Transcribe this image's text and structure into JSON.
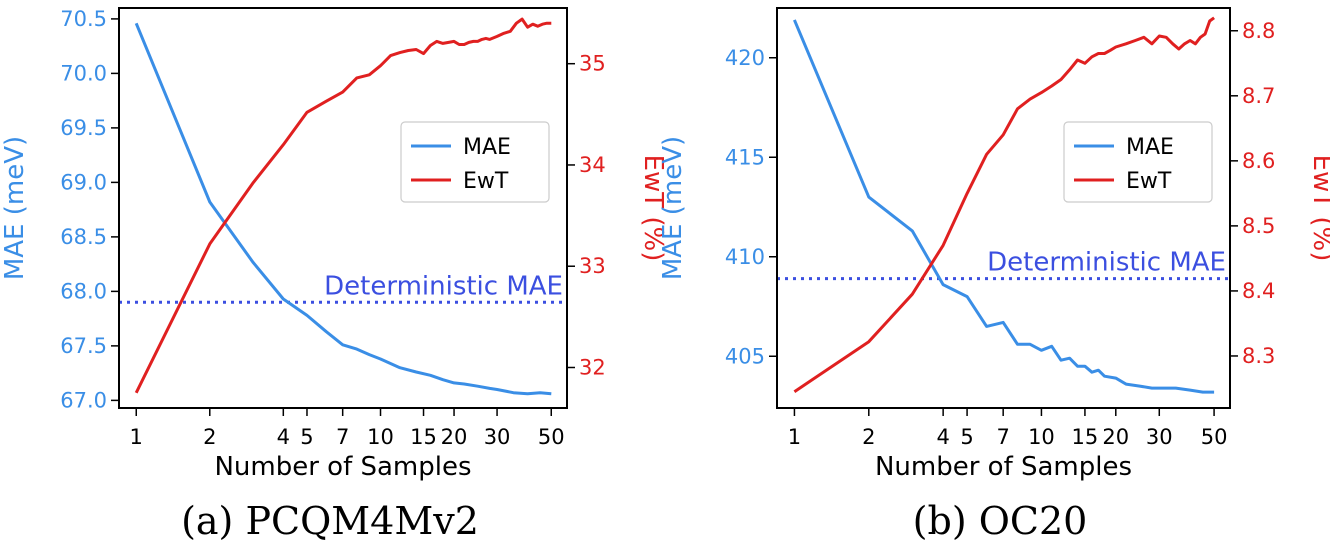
{
  "colors": {
    "mae": "#3a8ee6",
    "ewt": "#e02020",
    "baseline": "#3b4fe0",
    "axis": "#000000"
  },
  "chart_data": [
    {
      "type": "line",
      "caption": "(a) PCQM4Mv2",
      "xlabel": "Number of Samples",
      "ylabel": "MAE (meV)",
      "y2label": "EwT (%)",
      "xscale": "log",
      "xlim": [
        0.85,
        58
      ],
      "xticks": [
        1,
        2,
        4,
        5,
        7,
        10,
        15,
        20,
        30,
        50
      ],
      "ylim": [
        66.93,
        70.6
      ],
      "yticks": [
        67.0,
        67.5,
        68.0,
        68.5,
        69.0,
        69.5,
        70.0,
        70.5
      ],
      "ytick_decimals": 1,
      "y2lim": [
        31.6,
        35.55
      ],
      "y2ticks": [
        32,
        33,
        34,
        35
      ],
      "grid": false,
      "legend_position": "center-right",
      "legend": [
        "MAE",
        "EwT"
      ],
      "baseline": {
        "label": "Deterministic MAE",
        "value": 67.9
      },
      "series": [
        {
          "name": "MAE",
          "axis": "left",
          "x": [
            1,
            2,
            3,
            4,
            5,
            6,
            7,
            8,
            9,
            10,
            12,
            14,
            16,
            18,
            20,
            22,
            25,
            28,
            30,
            35,
            40,
            45,
            50
          ],
          "y": [
            70.46,
            68.82,
            68.27,
            67.93,
            67.78,
            67.63,
            67.51,
            67.47,
            67.42,
            67.38,
            67.3,
            67.26,
            67.23,
            67.19,
            67.16,
            67.15,
            67.13,
            67.11,
            67.1,
            67.07,
            67.06,
            67.07,
            67.06
          ]
        },
        {
          "name": "EwT",
          "axis": "right",
          "x": [
            1,
            2,
            3,
            4,
            5,
            6,
            7,
            8,
            9,
            10,
            11,
            12,
            13,
            14,
            15,
            16,
            17,
            18,
            19,
            20,
            21,
            22,
            23,
            24,
            25,
            26,
            27,
            28,
            30,
            32,
            34,
            36,
            38,
            40,
            42,
            44,
            46,
            48,
            50
          ],
          "y": [
            31.75,
            33.22,
            33.82,
            34.2,
            34.52,
            34.63,
            34.72,
            34.86,
            34.89,
            34.98,
            35.08,
            35.11,
            35.13,
            35.14,
            35.1,
            35.18,
            35.22,
            35.2,
            35.21,
            35.22,
            35.19,
            35.19,
            35.21,
            35.22,
            35.22,
            35.24,
            35.25,
            35.24,
            35.27,
            35.3,
            35.32,
            35.4,
            35.44,
            35.36,
            35.39,
            35.37,
            35.39,
            35.4,
            35.4
          ]
        }
      ]
    },
    {
      "type": "line",
      "caption": "(b) OC20",
      "xlabel": "Number of Samples",
      "ylabel": "MAE (meV)",
      "y2label": "EwT (%)",
      "xscale": "log",
      "xlim": [
        0.85,
        58
      ],
      "xticks": [
        1,
        2,
        4,
        5,
        7,
        10,
        15,
        20,
        30,
        50
      ],
      "ylim": [
        402.4,
        422.5
      ],
      "yticks": [
        405,
        410,
        415,
        420
      ],
      "ytick_decimals": 0,
      "y2lim": [
        8.22,
        8.835
      ],
      "y2ticks": [
        8.3,
        8.4,
        8.5,
        8.6,
        8.7,
        8.8
      ],
      "grid": false,
      "legend_position": "center-right",
      "legend": [
        "MAE",
        "EwT"
      ],
      "baseline": {
        "label": "Deterministic MAE",
        "value": 408.9
      },
      "series": [
        {
          "name": "MAE",
          "axis": "left",
          "x": [
            1,
            2,
            3,
            4,
            5,
            6,
            7,
            8,
            9,
            10,
            11,
            12,
            13,
            14,
            15,
            16,
            17,
            18,
            20,
            22,
            25,
            28,
            30,
            35,
            40,
            45,
            50
          ],
          "y": [
            421.9,
            413.0,
            411.3,
            408.6,
            408.0,
            406.5,
            406.7,
            405.6,
            405.6,
            405.3,
            405.5,
            404.8,
            404.9,
            404.5,
            404.5,
            404.2,
            404.3,
            404.0,
            403.9,
            403.6,
            403.5,
            403.4,
            403.4,
            403.4,
            403.3,
            403.2,
            403.2
          ]
        },
        {
          "name": "EwT",
          "axis": "right",
          "x": [
            1,
            2,
            3,
            4,
            5,
            6,
            7,
            8,
            9,
            10,
            11,
            12,
            13,
            14,
            15,
            16,
            17,
            18,
            19,
            20,
            22,
            24,
            26,
            28,
            30,
            32,
            34,
            36,
            38,
            40,
            42,
            44,
            46,
            48,
            50
          ],
          "y": [
            8.245,
            8.322,
            8.395,
            8.47,
            8.55,
            8.61,
            8.64,
            8.68,
            8.695,
            8.705,
            8.715,
            8.725,
            8.74,
            8.755,
            8.75,
            8.76,
            8.765,
            8.765,
            8.77,
            8.775,
            8.78,
            8.785,
            8.79,
            8.78,
            8.792,
            8.79,
            8.78,
            8.772,
            8.78,
            8.785,
            8.78,
            8.79,
            8.795,
            8.815,
            8.82
          ]
        }
      ]
    }
  ]
}
